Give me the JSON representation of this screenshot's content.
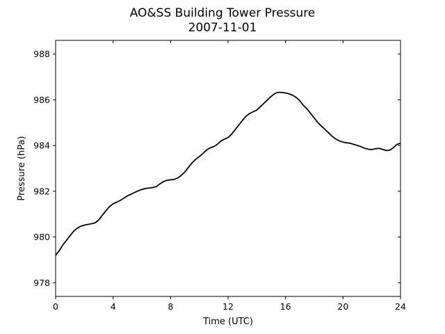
{
  "chart_data": {
    "type": "line",
    "title": "AO&SS Building Tower Pressure",
    "subtitle": "2007-11-01",
    "xlabel": "Time (UTC)",
    "ylabel": "Pressure (hPa)",
    "xlim": [
      0,
      24
    ],
    "ylim": [
      977.4,
      988.6
    ],
    "xticks": [
      0,
      4,
      8,
      12,
      16,
      20,
      24
    ],
    "yticks": [
      978,
      980,
      982,
      984,
      986,
      988
    ],
    "xtick_labels": [
      "0",
      "4",
      "8",
      "12",
      "16",
      "20",
      "24"
    ],
    "ytick_labels": [
      "978",
      "980",
      "982",
      "984",
      "986",
      "988"
    ],
    "grid": false,
    "line_color": "#000000",
    "series": [
      {
        "x": [
          0,
          0.25,
          0.5,
          0.75,
          1,
          1.25,
          1.5,
          1.75,
          2,
          2.25,
          2.5,
          2.75,
          3,
          3.25,
          3.5,
          3.75,
          4,
          4.25,
          4.5,
          4.75,
          5,
          5.25,
          5.5,
          5.75,
          6,
          6.25,
          6.5,
          6.75,
          7,
          7.25,
          7.5,
          7.75,
          8,
          8.25,
          8.5,
          8.75,
          9,
          9.25,
          9.5,
          9.75,
          10,
          10.25,
          10.5,
          10.75,
          11,
          11.25,
          11.5,
          11.75,
          12,
          12.25,
          12.5,
          12.75,
          13,
          13.25,
          13.5,
          13.75,
          14,
          14.25,
          14.5,
          14.75,
          15,
          15.25,
          15.5,
          15.75,
          16,
          16.25,
          16.5,
          16.75,
          17,
          17.25,
          17.5,
          17.75,
          18,
          18.25,
          18.5,
          18.75,
          19,
          19.25,
          19.5,
          19.75,
          20,
          20.25,
          20.5,
          20.75,
          21,
          21.25,
          21.5,
          21.75,
          22,
          22.25,
          22.5,
          22.75,
          23,
          23.25,
          23.5,
          23.75,
          24
        ],
        "y": [
          979.2,
          979.4,
          979.65,
          979.85,
          980.05,
          980.25,
          980.38,
          980.47,
          980.52,
          980.55,
          980.58,
          980.62,
          980.75,
          980.95,
          981.15,
          981.33,
          981.45,
          981.52,
          981.6,
          981.7,
          981.8,
          981.87,
          981.95,
          982.02,
          982.08,
          982.12,
          982.14,
          982.16,
          982.2,
          982.32,
          982.42,
          982.48,
          982.5,
          982.52,
          982.58,
          982.7,
          982.85,
          983.05,
          983.25,
          983.4,
          983.52,
          983.65,
          983.8,
          983.9,
          983.95,
          984.05,
          984.2,
          984.28,
          984.35,
          984.5,
          984.7,
          984.9,
          985.1,
          985.28,
          985.4,
          985.48,
          985.55,
          985.7,
          985.85,
          986.0,
          986.15,
          986.27,
          986.33,
          986.32,
          986.3,
          986.26,
          986.2,
          986.1,
          985.95,
          985.75,
          985.6,
          985.4,
          985.2,
          985.0,
          984.85,
          984.7,
          984.55,
          984.4,
          984.28,
          984.2,
          984.15,
          984.12,
          984.1,
          984.05,
          984.0,
          983.95,
          983.88,
          983.84,
          983.82,
          983.86,
          983.88,
          983.83,
          983.78,
          983.8,
          983.9,
          984.05,
          984.1
        ]
      }
    ]
  }
}
